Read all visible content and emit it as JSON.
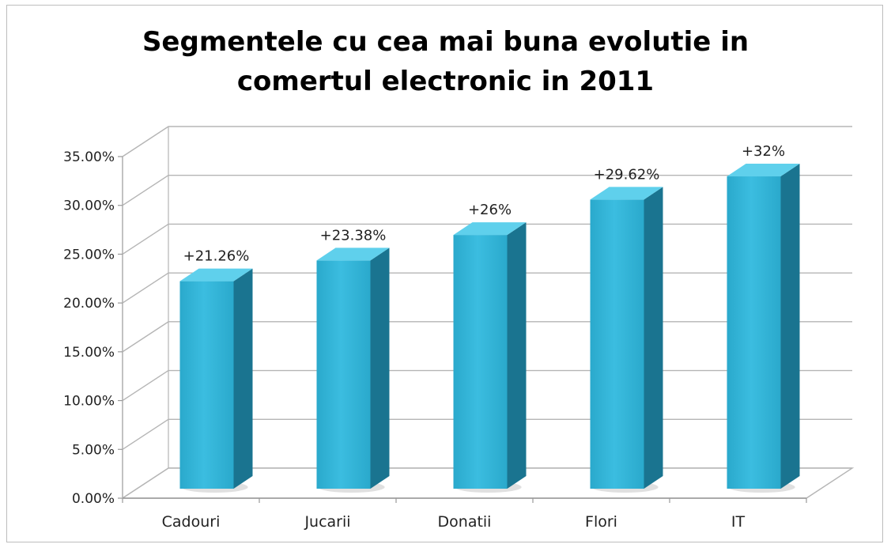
{
  "chart_data": {
    "type": "bar",
    "title": "Segmentele cu cea mai buna evolutie in\ncomertul electronic in 2011",
    "categories": [
      "Cadouri",
      "Jucarii",
      "Donatii",
      "Flori",
      "IT"
    ],
    "values": [
      21.26,
      23.38,
      26,
      29.62,
      32
    ],
    "data_labels": [
      "+21.26%",
      "+23.38%",
      "+26%",
      "+29.62%",
      "+32%"
    ],
    "y_ticks": [
      "0.00%",
      "5.00%",
      "10.00%",
      "15.00%",
      "20.00%",
      "25.00%",
      "30.00%",
      "35.00%"
    ],
    "ylim": [
      0,
      35
    ],
    "xlabel": "",
    "ylabel": "",
    "grid": true,
    "legend": "none",
    "style": "3d-column",
    "colors": {
      "bar_front": "#2aa9cc",
      "bar_front_light": "#3bbde0",
      "bar_side": "#1a7490",
      "bar_top": "#5fd0ec",
      "grid": "#b5b5b5",
      "axis": "#9a9a9a"
    }
  }
}
